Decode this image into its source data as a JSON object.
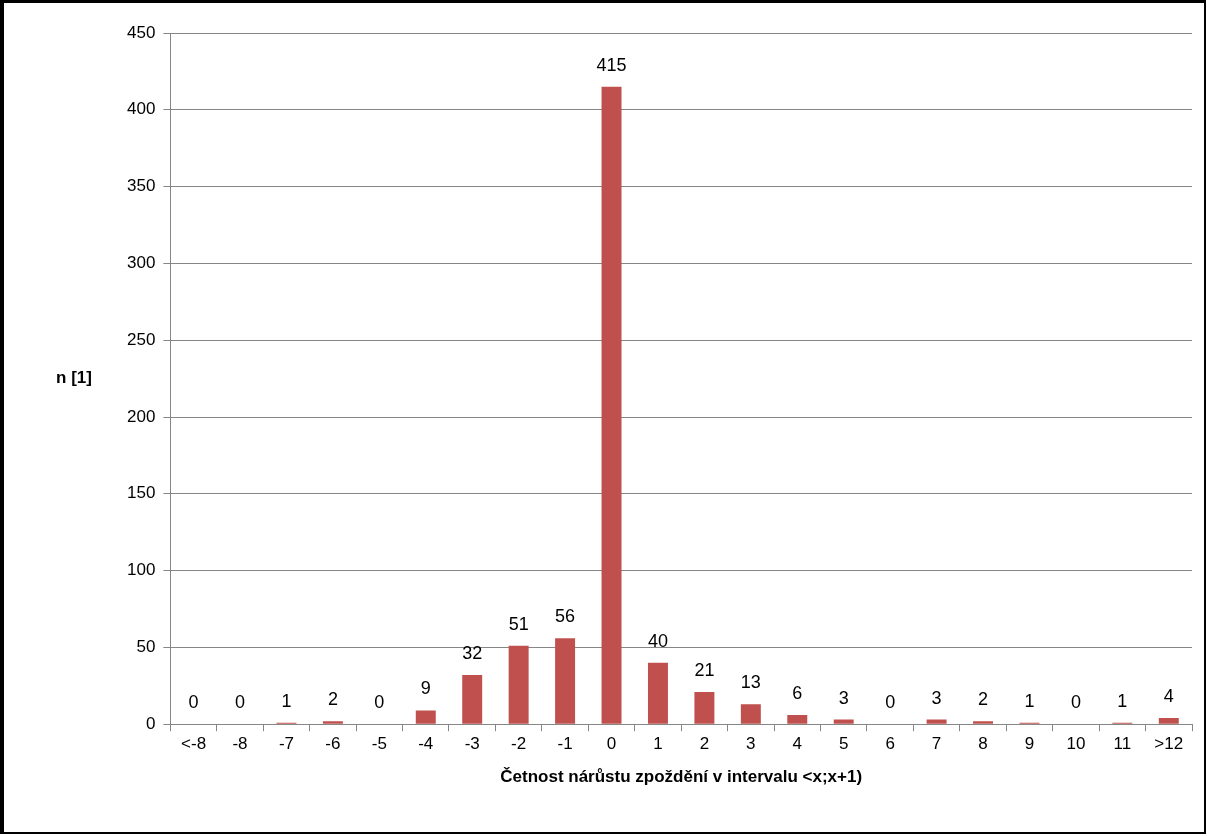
{
  "chart_data": {
    "type": "bar",
    "xlabel": "Četnost nárůstu zpoždění v intervalu <x;x+1)",
    "ylabel": "n [1]",
    "categories": [
      "<-8",
      "-8",
      "-7",
      "-6",
      "-5",
      "-4",
      "-3",
      "-2",
      "-1",
      "0",
      "1",
      "2",
      "3",
      "4",
      "5",
      "6",
      "7",
      "8",
      "9",
      "10",
      "11",
      ">12"
    ],
    "values": [
      0,
      0,
      1,
      2,
      0,
      9,
      32,
      51,
      56,
      415,
      40,
      21,
      13,
      6,
      3,
      0,
      3,
      2,
      1,
      0,
      1,
      4
    ],
    "color": "#c0504d",
    "ylim": [
      0,
      450
    ],
    "yticks": [
      0,
      50,
      100,
      150,
      200,
      250,
      300,
      350,
      400,
      450
    ],
    "grid": "y",
    "data_labels": true,
    "legend": false
  }
}
